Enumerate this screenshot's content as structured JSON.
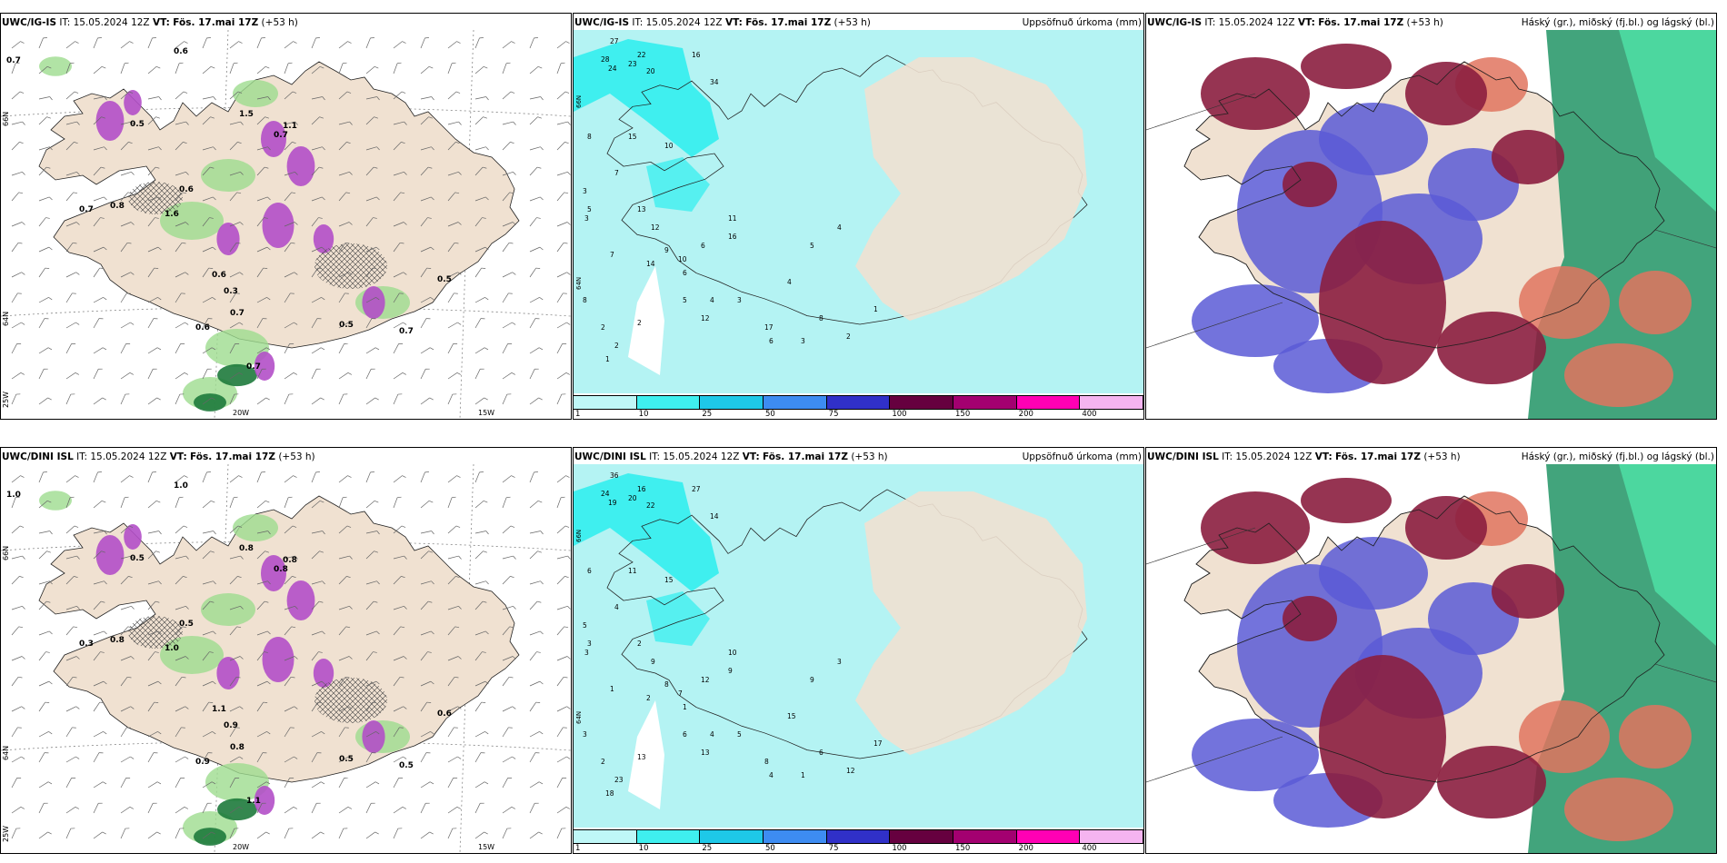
{
  "panels": [
    {
      "id": "p1",
      "model": "UWC/IG-IS",
      "it_label": "IT:",
      "it": "15.05.2024 12Z",
      "vt_label": "VT:",
      "vt": "Fös. 17.mai 17Z",
      "lead": "(+53 h)",
      "right_title": "",
      "kind": "wind"
    },
    {
      "id": "p2",
      "model": "UWC/IG-IS",
      "it_label": "IT:",
      "it": "15.05.2024 12Z",
      "vt_label": "VT:",
      "vt": "Fös. 17.mai 17Z",
      "lead": "(+53 h)",
      "right_title": "Uppsöfnuð úrkoma (mm)",
      "kind": "precip"
    },
    {
      "id": "p3",
      "model": "UWC/IG-IS",
      "it_label": "IT:",
      "it": "15.05.2024 12Z",
      "vt_label": "VT:",
      "vt": "Fös. 17.mai 17Z",
      "lead": "(+53 h)",
      "right_title": "Háský (gr.), miðský (fj.bl.) og lágský (bl.)",
      "kind": "cloud"
    },
    {
      "id": "p4",
      "model": "UWC/DINI ISL",
      "it_label": "IT:",
      "it": "15.05.2024 12Z",
      "vt_label": "VT:",
      "vt": "Fös. 17.mai 17Z",
      "lead": "(+53 h)",
      "right_title": "",
      "kind": "wind"
    },
    {
      "id": "p5",
      "model": "UWC/DINI ISL",
      "it_label": "IT:",
      "it": "15.05.2024 12Z",
      "vt_label": "VT:",
      "vt": "Fös. 17.mai 17Z",
      "lead": "(+53 h)",
      "right_title": "Uppsöfnuð úrkoma (mm)",
      "kind": "precip"
    },
    {
      "id": "p6",
      "model": "UWC/DINI ISL",
      "it_label": "IT:",
      "it": "15.05.2024 12Z",
      "vt_label": "VT:",
      "vt": "Fös. 17.mai 17Z",
      "lead": "(+53 h)",
      "right_title": "Háský (gr.), miðský (fj.bl.) og lágský (bl.)",
      "kind": "cloud"
    }
  ],
  "wind_panel_top": {
    "lon_labels": [
      "20W",
      "15W"
    ],
    "lat_labels": [
      "66N",
      "64N",
      "25W"
    ],
    "values": [
      "0.7",
      "0.6",
      "1.6",
      "0.5",
      "0.7",
      "0.8",
      "0.6",
      "0.6",
      "1.1",
      "0.7",
      "0.3",
      "0.7",
      "0.5",
      "0.7",
      "0.6",
      "1.5",
      "0.7",
      "0.5"
    ]
  },
  "wind_panel_bottom": {
    "lon_labels": [
      "20W",
      "15W"
    ],
    "lat_labels": [
      "66N",
      "64N",
      "25W"
    ],
    "values": [
      "1.0",
      "1.0",
      "1.0",
      "0.5",
      "0.3",
      "0.8",
      "0.5",
      "1.1",
      "0.8",
      "0.8",
      "0.9",
      "1.1",
      "0.5",
      "0.8",
      "0.9",
      "0.8",
      "0.5",
      "0.6"
    ]
  },
  "precip_panel_top": {
    "lat_labels": [
      "66N",
      "64N"
    ],
    "values": [
      "27",
      "28",
      "24",
      "23",
      "22",
      "20",
      "16",
      "34",
      "8",
      "15",
      "10",
      "7",
      "3",
      "5",
      "3",
      "13",
      "12",
      "9",
      "10",
      "6",
      "11",
      "4",
      "5",
      "7",
      "8",
      "2",
      "2",
      "1",
      "2",
      "12",
      "16",
      "14",
      "6",
      "3",
      "17",
      "6",
      "3",
      "2",
      "1",
      "8",
      "4",
      "5",
      "4"
    ]
  },
  "precip_panel_bottom": {
    "lat_labels": [
      "66N",
      "64N"
    ],
    "values": [
      "36",
      "24",
      "19",
      "20",
      "16",
      "22",
      "27",
      "14",
      "6",
      "11",
      "15",
      "4",
      "5",
      "3",
      "3",
      "2",
      "9",
      "8",
      "7",
      "12",
      "10",
      "4",
      "6",
      "1",
      "3",
      "2",
      "23",
      "18",
      "13",
      "13",
      "9",
      "2",
      "1",
      "5",
      "8",
      "4",
      "1",
      "12",
      "17",
      "6",
      "15",
      "9",
      "3"
    ]
  },
  "colorbar": {
    "ticks": [
      "1",
      "10",
      "25",
      "50",
      "75",
      "100",
      "150",
      "200",
      "400"
    ],
    "colors": [
      "#bff7f7",
      "#3fefef",
      "#1ec8e8",
      "#3d8cf2",
      "#3030c8",
      "#66003f",
      "#a30070",
      "#ff00b4",
      "#f5b4f0"
    ]
  },
  "styles": {
    "land": "#f0e1d1",
    "sea": "#ffffff",
    "precip_bg": "#b4f3f3"
  }
}
